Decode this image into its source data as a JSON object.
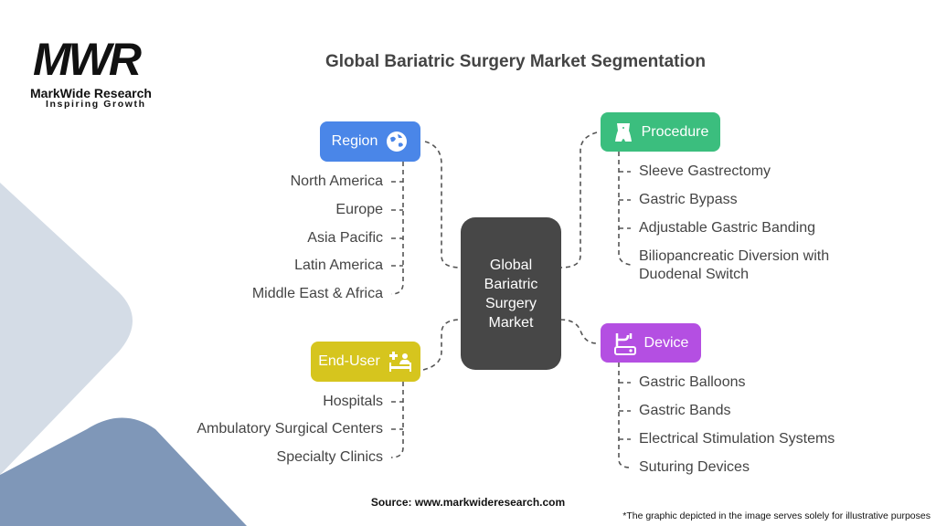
{
  "logo": {
    "mark": "MWR",
    "name": "MarkWide Research",
    "tagline": "Inspiring Growth"
  },
  "title": "Global Bariatric Surgery Market Segmentation",
  "center": "Global Bariatric Surgery Market",
  "colors": {
    "region": "#4A86E8",
    "procedure": "#3BBE7E",
    "end_user": "#D6C51E",
    "device": "#B44FE2",
    "center": "#474747"
  },
  "region": {
    "label": "Region",
    "icon": "globe-icon",
    "items": [
      "North America",
      "Europe",
      "Asia Pacific",
      "Latin America",
      "Middle East & Africa"
    ]
  },
  "procedure": {
    "label": "Procedure",
    "icon": "body-icon",
    "items": [
      "Sleeve Gastrectomy",
      "Gastric Bypass",
      "Adjustable Gastric Banding",
      "Biliopancreatic Diversion with",
      "Duodenal Switch"
    ]
  },
  "end_user": {
    "label": "End-User",
    "icon": "hospital-bed-icon",
    "items": [
      "Hospitals",
      "Ambulatory Surgical Centers",
      "Specialty Clinics"
    ]
  },
  "device": {
    "label": "Device",
    "icon": "medical-device-icon",
    "items": [
      "Gastric Balloons",
      "Gastric Bands",
      "Electrical Stimulation Systems",
      "Suturing Devices"
    ]
  },
  "source": "Source: www.markwideresearch.com",
  "note": "*The graphic depicted in the image serves solely for illustrative purposes"
}
